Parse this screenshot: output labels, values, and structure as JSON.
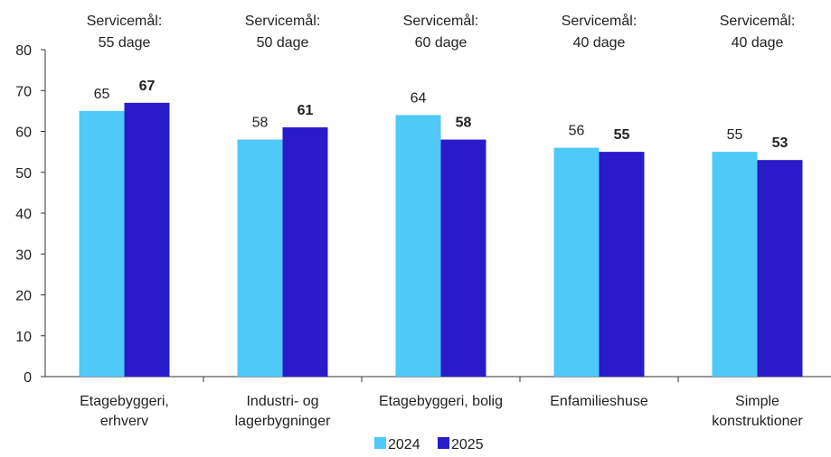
{
  "chart_data": {
    "type": "bar",
    "categories": [
      [
        "Etagebyggeri,",
        "erhverv"
      ],
      [
        "Industri- og",
        "lagerbygninger"
      ],
      [
        "Etagebyggeri, bolig"
      ],
      [
        "Enfamilieshuse"
      ],
      [
        "Simple",
        "konstruktioner"
      ]
    ],
    "service_targets": [
      [
        "Servicemål:",
        "55 dage"
      ],
      [
        "Servicemål:",
        "50 dage"
      ],
      [
        "Servicemål:",
        "60 dage"
      ],
      [
        "Servicemål:",
        "40 dage"
      ],
      [
        "Servicemål:",
        "40 dage"
      ]
    ],
    "series": [
      {
        "name": "2024",
        "values": [
          65,
          58,
          64,
          56,
          55
        ],
        "color": "#4fc9f7"
      },
      {
        "name": "2025",
        "values": [
          67,
          61,
          58,
          55,
          53
        ],
        "color": "#2a1bc8"
      }
    ],
    "ylim": [
      0,
      80
    ],
    "yticks": [
      0,
      10,
      20,
      30,
      40,
      50,
      60,
      70,
      80
    ],
    "legend": "bottom-center",
    "grid": false
  }
}
